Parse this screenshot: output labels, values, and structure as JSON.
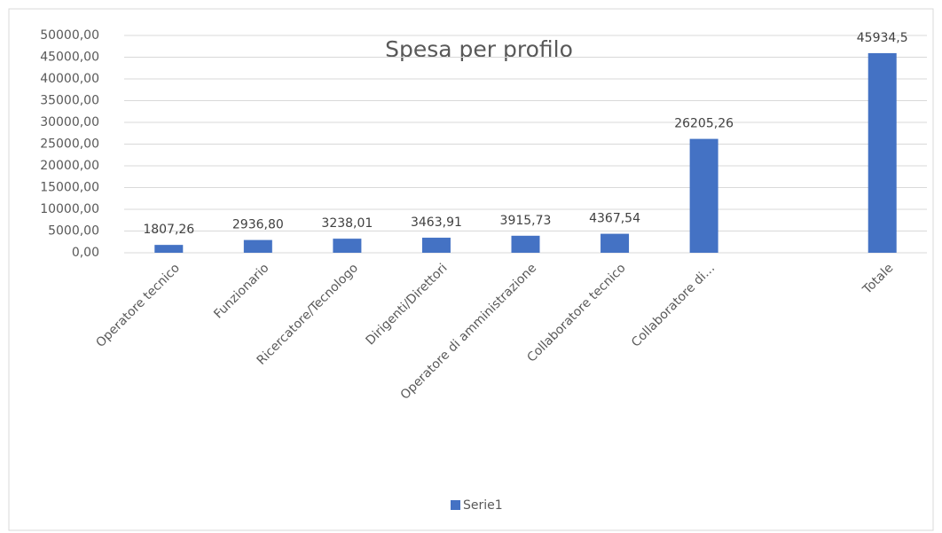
{
  "chart_data": {
    "type": "bar",
    "title": "Spesa per profilo",
    "categories": [
      "Operatore tecnico",
      "Funzionario",
      "Ricercatore/Tecnologo",
      "Dirigenti/Direttori",
      "Operatore di amministrazione",
      "Collaboratore tecnico",
      "Collaboratore di…",
      null,
      "Totale"
    ],
    "series": [
      {
        "name": "Serie1",
        "color": "#4472c4",
        "values": [
          1807.26,
          2936.8,
          3238.01,
          3463.91,
          3915.73,
          4367.54,
          26205.26,
          null,
          45934.5
        ],
        "value_labels": [
          "1807,26",
          "2936,80",
          "3238,01",
          "3463,91",
          "3915,73",
          "4367,54",
          "26205,26",
          null,
          "45934,5"
        ]
      }
    ],
    "ylim": [
      0,
      50000
    ],
    "yticks": [
      {
        "value": 0,
        "label": "0,00"
      },
      {
        "value": 5000,
        "label": "5000,00"
      },
      {
        "value": 10000,
        "label": "10000,00"
      },
      {
        "value": 15000,
        "label": "15000,00"
      },
      {
        "value": 20000,
        "label": "20000,00"
      },
      {
        "value": 25000,
        "label": "25000,00"
      },
      {
        "value": 30000,
        "label": "30000,00"
      },
      {
        "value": 35000,
        "label": "35000,00"
      },
      {
        "value": 40000,
        "label": "40000,00"
      },
      {
        "value": 45000,
        "label": "45000,00"
      },
      {
        "value": 50000,
        "label": "50000,00"
      }
    ],
    "grid": true,
    "legend": "bottom"
  }
}
